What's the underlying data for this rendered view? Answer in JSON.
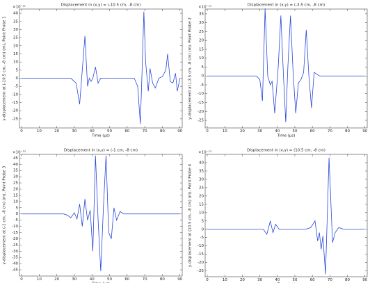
{
  "chart_data": [
    {
      "type": "line",
      "title": "Displacement in (x,y) = (-10.5 cm, -8 cm)",
      "xlabel": "Time (µs)",
      "ylabel": "y-displacement at (-10.5 cm, -8 cm) (m), Point Probe 1",
      "multiplier": "×10⁻¹¹",
      "xlim": [
        -1.2,
        91.3
      ],
      "ylim": [
        -30.6,
        42.6
      ],
      "xticks": [
        0,
        10,
        20,
        30,
        40,
        50,
        60,
        70,
        80,
        90
      ],
      "yticks": [
        -25,
        -20,
        -15,
        -10,
        -5,
        0,
        5,
        10,
        15,
        20,
        25,
        30,
        35,
        40
      ],
      "color": "#2646d9",
      "x": [
        0,
        28,
        31,
        33,
        34.5,
        36,
        37.5,
        38.5,
        39.5,
        40.5,
        42,
        43.5,
        45,
        47,
        64,
        66,
        67.5,
        68.5,
        69.5,
        70.5,
        72,
        73,
        74.5,
        76,
        78,
        80,
        82,
        83,
        84.5,
        86,
        87.5,
        88.5,
        90
      ],
      "values": [
        0,
        0,
        -3,
        -16,
        5,
        26,
        -5,
        0,
        -2,
        0,
        7,
        -3,
        0,
        0,
        0,
        -5,
        -28,
        5,
        41,
        10,
        -8,
        6,
        -3,
        -6,
        0,
        1,
        5,
        15,
        -2,
        -3,
        3,
        -8,
        0
      ]
    },
    {
      "type": "line",
      "title": "Displacement in (x,y) = (-3.5 cm, -8 cm)",
      "xlabel": "Time (µs)",
      "ylabel": "y-displacement at (-3.5 cm, -8 cm) (m), Point Probe 2",
      "multiplier": "×10⁻¹³",
      "xlim": [
        -1.2,
        91.3
      ],
      "ylim": [
        -29.3,
        37.7
      ],
      "xticks": [
        0,
        10,
        20,
        30,
        40,
        50,
        60,
        70,
        80,
        90
      ],
      "yticks": [
        -25,
        -20,
        -15,
        -10,
        -5,
        0,
        5,
        10,
        15,
        20,
        25,
        30,
        35
      ],
      "color": "#2646d9",
      "x": [
        0,
        28,
        30,
        31.5,
        33,
        34.5,
        36,
        37,
        38.5,
        40.5,
        42,
        43.5,
        44.8,
        46,
        47.5,
        49,
        50.5,
        52,
        53.5,
        55,
        56.5,
        58,
        59.5,
        61,
        62.5,
        64,
        90
      ],
      "values": [
        0,
        0,
        -2,
        -14,
        38,
        0,
        -5,
        -3,
        -21,
        5,
        34,
        0,
        -26,
        5,
        34,
        2,
        -21,
        -4,
        -2,
        2,
        26,
        0,
        -18,
        2,
        1,
        0,
        0
      ]
    },
    {
      "type": "line",
      "title": "Displacement in (x,y) = (-1 cm, -8 cm)",
      "xlabel": "Time (µs)",
      "ylabel": "y-displacement at (-1 cm, -8 cm) (m), Point Probe 3",
      "multiplier": "×10⁻¹³",
      "xlim": [
        -1.2,
        91.3
      ],
      "ylim": [
        -50,
        48
      ],
      "xticks": [
        0,
        10,
        20,
        30,
        40,
        50,
        60,
        70,
        80,
        90
      ],
      "yticks": [
        -45,
        -40,
        -35,
        -30,
        -25,
        -20,
        -15,
        -10,
        -5,
        0,
        5,
        10,
        15,
        20,
        25,
        30,
        35,
        40,
        45
      ],
      "color": "#2646d9",
      "x": [
        0,
        24,
        26,
        28,
        30,
        31.5,
        33,
        34.5,
        36,
        37.5,
        39,
        40.5,
        42,
        43.5,
        45,
        46.5,
        48,
        49.5,
        51,
        52.5,
        54,
        56,
        58,
        60,
        90
      ],
      "values": [
        0,
        0,
        -1,
        -3,
        1,
        -4,
        8,
        -10,
        12,
        -5,
        3,
        -30,
        47,
        -5,
        -46,
        5,
        47,
        -15,
        -20,
        5,
        -5,
        2,
        0,
        0,
        0
      ]
    },
    {
      "type": "line",
      "title": "Displacement in (x,y) = (10.5 cm, -8 cm)",
      "xlabel": "Time (µs)",
      "ylabel": "y-displacement at (10.5 cm, -8 cm) (m), Point Probe 4",
      "multiplier": "×10⁻¹³",
      "xlim": [
        -1.2,
        91.3
      ],
      "ylim": [
        -28.5,
        45
      ],
      "xticks": [
        0,
        10,
        20,
        30,
        40,
        50,
        60,
        70,
        80,
        90
      ],
      "yticks": [
        -25,
        -20,
        -15,
        -10,
        -5,
        0,
        5,
        10,
        15,
        20,
        25,
        30,
        35,
        40
      ],
      "color": "#2646d9",
      "x": [
        0,
        30,
        32,
        34,
        36,
        37.5,
        39,
        41,
        43,
        56,
        59,
        61.5,
        63,
        64,
        65,
        66,
        67.5,
        69.5,
        71.5,
        73,
        75,
        78,
        90
      ],
      "values": [
        0,
        0,
        0,
        -3,
        5,
        -2,
        3,
        0,
        0,
        0,
        1,
        5,
        -7,
        -2,
        -12,
        -4,
        -27,
        43,
        -8,
        -2,
        1,
        0,
        0
      ]
    }
  ]
}
